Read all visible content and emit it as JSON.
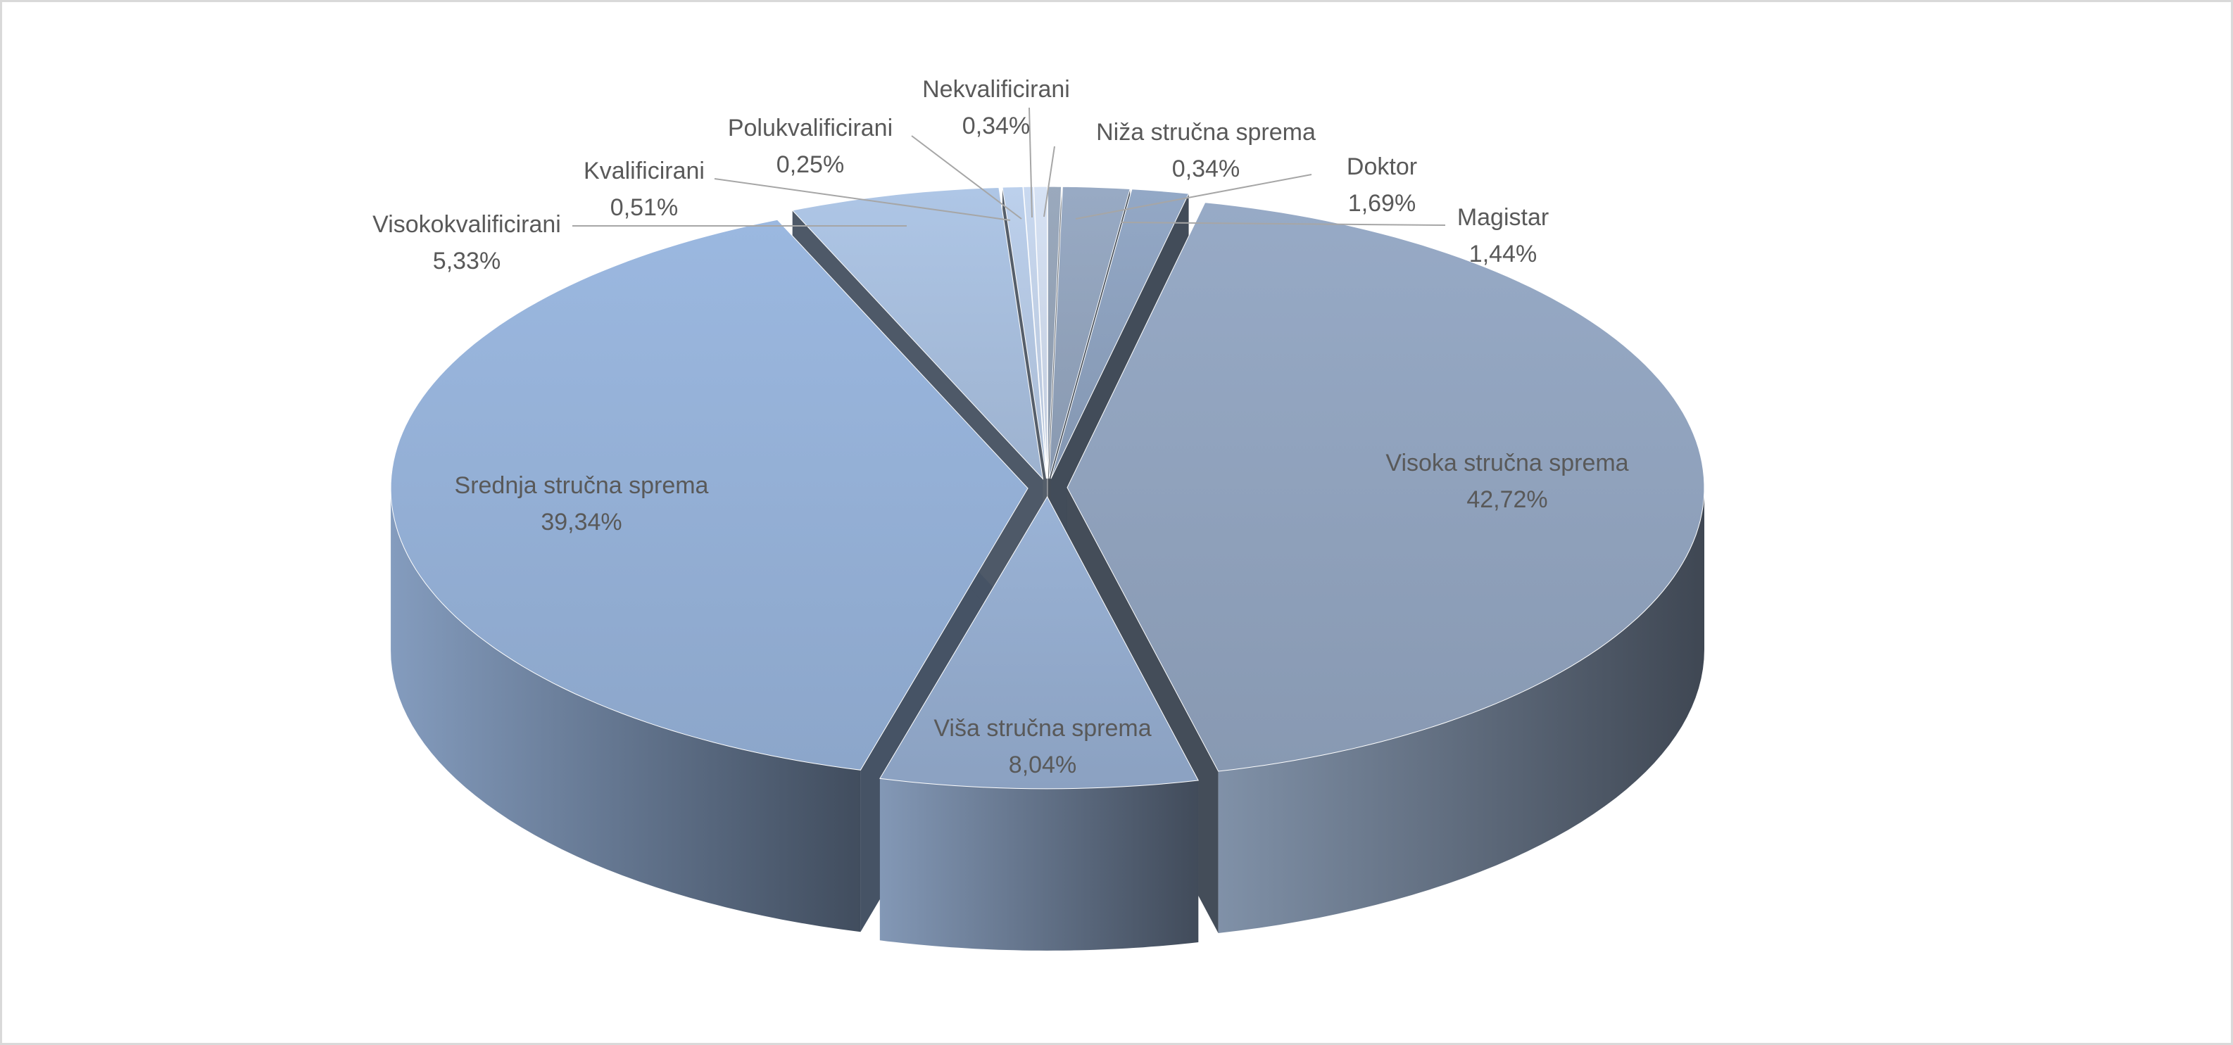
{
  "chart_data": {
    "type": "pie",
    "variant": "3d-exploded",
    "title": "",
    "slices": [
      {
        "label": "Niža stručna sprema",
        "value": 0.34,
        "display": "0,34%",
        "color": "#9aa9bd"
      },
      {
        "label": "Doktor",
        "value": 1.69,
        "display": "1,69%",
        "color": "#98aac4"
      },
      {
        "label": "Magistar",
        "value": 1.44,
        "display": "1,44%",
        "color": "#93a8c6"
      },
      {
        "label": "Visoka stručna sprema",
        "value": 42.72,
        "display": "42,72%",
        "color": "#97aac6"
      },
      {
        "label": "Viša stručna sprema",
        "value": 8.04,
        "display": "8,04%",
        "color": "#9ab3d6"
      },
      {
        "label": "Srednja stručna sprema",
        "value": 39.34,
        "display": "39,34%",
        "color": "#9bb8e0"
      },
      {
        "label": "Visokokvalificirani",
        "value": 5.33,
        "display": "5,33%",
        "color": "#aec6e6"
      },
      {
        "label": "Kvalificirani",
        "value": 0.51,
        "display": "0,51%",
        "color": "#bcd0ec"
      },
      {
        "label": "Polukvalificirani",
        "value": 0.25,
        "display": "0,25%",
        "color": "#c9d9f0"
      },
      {
        "label": "Nekvalificirani",
        "value": 0.34,
        "display": "0,34%",
        "color": "#d6e2f4"
      }
    ],
    "legend": "none",
    "data_labels": "outside-with-leader-lines-for-small-slices"
  }
}
